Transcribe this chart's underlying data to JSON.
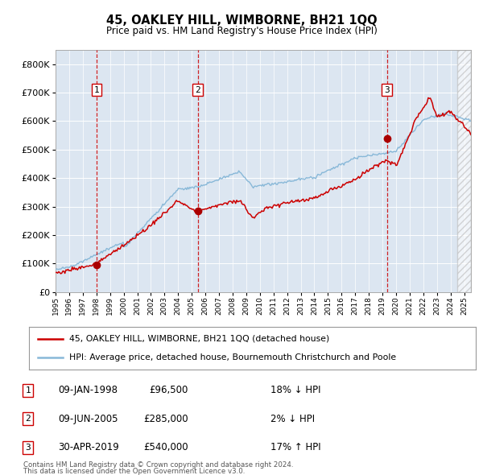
{
  "title": "45, OAKLEY HILL, WIMBORNE, BH21 1QQ",
  "subtitle": "Price paid vs. HM Land Registry's House Price Index (HPI)",
  "legend_line1": "45, OAKLEY HILL, WIMBORNE, BH21 1QQ (detached house)",
  "legend_line2": "HPI: Average price, detached house, Bournemouth Christchurch and Poole",
  "footnote1": "Contains HM Land Registry data © Crown copyright and database right 2024.",
  "footnote2": "This data is licensed under the Open Government Licence v3.0.",
  "transactions": [
    {
      "num": 1,
      "date": "09-JAN-1998",
      "price": "£96,500",
      "pct_hpi": "18% ↓ HPI",
      "year": 1998.03,
      "val": 96500
    },
    {
      "num": 2,
      "date": "09-JUN-2005",
      "price": "£285,000",
      "pct_hpi": "2% ↓ HPI",
      "year": 2005.44,
      "val": 285000
    },
    {
      "num": 3,
      "date": "30-APR-2019",
      "price": "£540,000",
      "pct_hpi": "17% ↑ HPI",
      "year": 2019.33,
      "val": 540000
    }
  ],
  "bg_color": "#ffffff",
  "plot_bg_color": "#dce6f1",
  "red_line_color": "#cc0000",
  "blue_line_color": "#88b8d8",
  "marker_color": "#aa0000",
  "vline_color": "#cc0000",
  "grid_color": "#ffffff",
  "ylim": [
    0,
    850000
  ],
  "yticks": [
    0,
    100000,
    200000,
    300000,
    400000,
    500000,
    600000,
    700000,
    800000
  ],
  "xlim_start": 1995.0,
  "xlim_end": 2025.5,
  "hatch_start": 2024.5
}
